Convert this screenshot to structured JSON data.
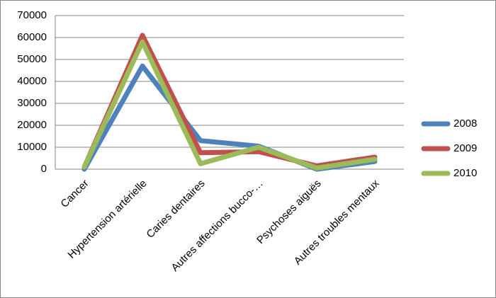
{
  "chart_data": {
    "type": "line",
    "categories": [
      "Cancer",
      "Hypertension artérielle",
      "Caries dentaires",
      "Autres affections bucco-…",
      "Psychoses aiguës",
      "Autres troubles mentaux"
    ],
    "series": [
      {
        "name": "2008",
        "color": "#4f81bd",
        "values": [
          0,
          47000,
          13000,
          10500,
          0,
          3500
        ]
      },
      {
        "name": "2009",
        "color": "#c0504d",
        "values": [
          1000,
          61000,
          7500,
          8000,
          1500,
          5500
        ]
      },
      {
        "name": "2010",
        "color": "#9bbb59",
        "values": [
          1000,
          58000,
          2500,
          10000,
          500,
          4500
        ]
      }
    ],
    "ylim": [
      0,
      70000
    ],
    "yticks": [
      0,
      10000,
      20000,
      30000,
      40000,
      50000,
      60000,
      70000
    ],
    "grid": true,
    "legend": "right"
  }
}
